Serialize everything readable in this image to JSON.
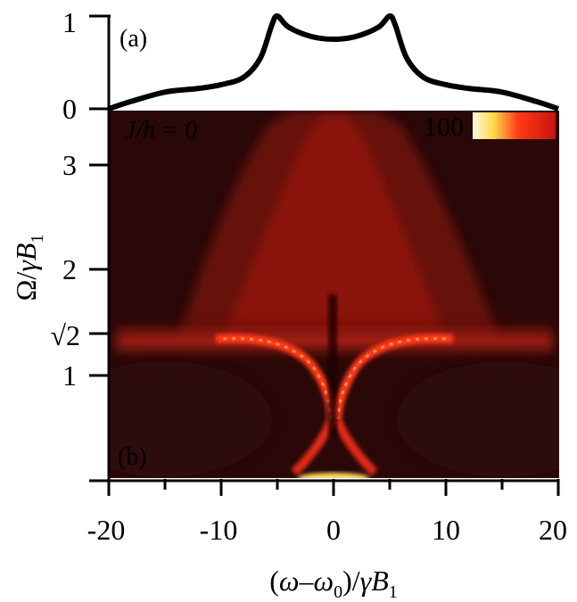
{
  "colors": {
    "background": "#ffffff",
    "axis": "#000000",
    "map_dark": "#2a0808",
    "map_mid": "#8a1410",
    "map_bright": "#ff2a14",
    "map_hot": "#ffe07a"
  },
  "chart_data": [
    {
      "type": "line",
      "panel_label": "(a)",
      "x": [
        -20,
        -18,
        -15,
        -12,
        -10,
        -8,
        -6.5,
        -5.5,
        -5,
        -4,
        -2,
        0,
        2,
        4,
        5,
        5.5,
        6.5,
        8,
        10,
        12,
        15,
        18,
        20
      ],
      "y": [
        0.0,
        0.08,
        0.18,
        0.22,
        0.26,
        0.34,
        0.55,
        0.9,
        1.0,
        0.88,
        0.78,
        0.75,
        0.78,
        0.88,
        1.0,
        0.9,
        0.55,
        0.34,
        0.26,
        0.22,
        0.18,
        0.08,
        0.0
      ],
      "xlim": [
        -20,
        20
      ],
      "ylim": [
        0,
        1
      ],
      "yticks": [
        "0",
        "1"
      ],
      "grid": false
    },
    {
      "type": "heatmap",
      "panel_label": "(b)",
      "annotation": "J/h = 0",
      "colorbar_label": "100",
      "xlabel": "(ω–ω0)/γB1",
      "ylabel": "Ω/γB1",
      "xlim": [
        -20,
        20
      ],
      "ylim": [
        0,
        3.5
      ],
      "xticks": [
        "-20",
        "-10",
        "0",
        "10",
        "20"
      ],
      "yticks": [
        "1",
        "√2",
        "2",
        "3"
      ],
      "features": {
        "resonance_arm_center_omega": 1.414,
        "resonance_arm_span": [
          -11,
          11
        ],
        "x_crossing_at": [
          0,
          0.55
        ]
      },
      "grid": false
    }
  ]
}
